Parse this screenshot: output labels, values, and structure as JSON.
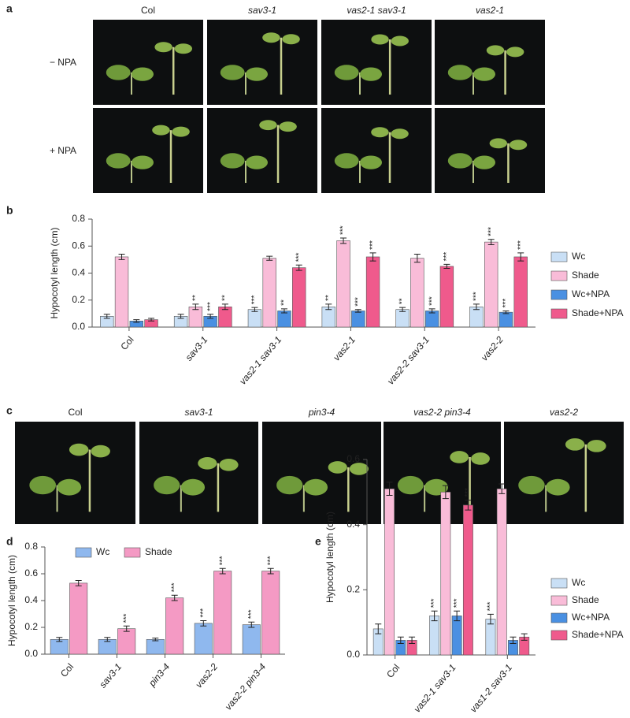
{
  "panel_a": {
    "label": "a",
    "columns": [
      "Col",
      "sav3-1",
      "vas2-1 sav3-1",
      "vas2-1"
    ],
    "rows": [
      "− NPA",
      "+ NPA"
    ]
  },
  "panel_c": {
    "label": "c",
    "columns": [
      "Col",
      "sav3-1",
      "pin3-4",
      "vas2-2 pin3-4",
      "vas2-2"
    ]
  },
  "chart_data": [
    {
      "type": "bar",
      "label": "b",
      "ylabel": "Hypocotyl length (cm)",
      "categories": [
        "Col",
        "sav3-1",
        "vas2-1 sav3-1",
        "vas2-1",
        "vas2-2 sav3-1",
        "vas2-2"
      ],
      "series": [
        {
          "name": "Wc",
          "color": "#c9dff5",
          "values": [
            0.08,
            0.08,
            0.13,
            0.15,
            0.13,
            0.15
          ],
          "errors": [
            0.015,
            0.015,
            0.015,
            0.02,
            0.015,
            0.02
          ],
          "significance": [
            null,
            null,
            "***",
            "**",
            "**",
            "***"
          ]
        },
        {
          "name": "Shade",
          "color": "#f9bcd8",
          "values": [
            0.52,
            0.15,
            0.51,
            0.64,
            0.51,
            0.63
          ],
          "errors": [
            0.02,
            0.02,
            0.015,
            0.02,
            0.03,
            0.02
          ],
          "significance": [
            null,
            "**",
            null,
            "***",
            null,
            "***"
          ]
        },
        {
          "name": "Wc+NPA",
          "color": "#4a90e2",
          "values": [
            0.045,
            0.08,
            0.12,
            0.12,
            0.12,
            0.11
          ],
          "errors": [
            0.01,
            0.015,
            0.015,
            0.01,
            0.015,
            0.01
          ],
          "significance": [
            null,
            "***",
            "**",
            "***",
            "***",
            "***"
          ]
        },
        {
          "name": "Shade+NPA",
          "color": "#ef5a8c",
          "values": [
            0.055,
            0.15,
            0.44,
            0.52,
            0.45,
            0.52
          ],
          "errors": [
            0.01,
            0.02,
            0.02,
            0.03,
            0.015,
            0.03
          ],
          "significance": [
            null,
            "**",
            "***",
            "***",
            "***",
            "***"
          ]
        }
      ],
      "ylim": [
        0,
        0.8
      ],
      "yticks": [
        {
          "value": 0,
          "label": "0.0"
        },
        {
          "value": 0.2,
          "label": "0.2"
        },
        {
          "value": 0.4,
          "label": "0.4"
        },
        {
          "value": 0.6,
          "label": "0.6"
        },
        {
          "value": 0.8,
          "label": "0.8"
        }
      ],
      "legend": "right"
    },
    {
      "type": "bar",
      "label": "d",
      "ylabel": "Hypocotyl length (cm)",
      "categories": [
        "Col",
        "sav3-1",
        "pin3-4",
        "vas2-2",
        "vas2-2 pin3-4"
      ],
      "series": [
        {
          "name": "Wc",
          "color": "#8fb8ee",
          "values": [
            0.11,
            0.11,
            0.11,
            0.23,
            0.22
          ],
          "errors": [
            0.015,
            0.015,
            0.01,
            0.02,
            0.02
          ],
          "significance": [
            null,
            null,
            null,
            "***",
            "***"
          ]
        },
        {
          "name": "Shade",
          "color": "#f49ac4",
          "values": [
            0.53,
            0.19,
            0.42,
            0.62,
            0.62
          ],
          "errors": [
            0.02,
            0.02,
            0.02,
            0.02,
            0.02
          ],
          "significance": [
            null,
            "***",
            "***",
            "***",
            "***"
          ]
        }
      ],
      "ylim": [
        0,
        0.8
      ],
      "yticks": [
        {
          "value": 0,
          "label": "0.0"
        },
        {
          "value": 0.2,
          "label": "0.2"
        },
        {
          "value": 0.4,
          "label": "0.4"
        },
        {
          "value": 0.6,
          "label": "0.6"
        },
        {
          "value": 0.8,
          "label": "0.8"
        }
      ],
      "legend": "top"
    },
    {
      "type": "bar",
      "label": "e",
      "ylabel": "Hypocotyl length (cm)",
      "categories": [
        "Col",
        "vas2-1 sav3-1",
        "vas1-2 sav3-1"
      ],
      "series": [
        {
          "name": "Wc",
          "color": "#c9dff5",
          "values": [
            0.08,
            0.12,
            0.11
          ],
          "errors": [
            0.015,
            0.015,
            0.015
          ],
          "significance": [
            null,
            "***",
            "***"
          ]
        },
        {
          "name": "Shade",
          "color": "#f9bcd8",
          "values": [
            0.51,
            0.5,
            0.51
          ],
          "errors": [
            0.02,
            0.02,
            0.015
          ],
          "significance": [
            null,
            null,
            null
          ]
        },
        {
          "name": "Wc+NPA",
          "color": "#4a90e2",
          "values": [
            0.045,
            0.12,
            0.045
          ],
          "errors": [
            0.01,
            0.015,
            0.01
          ],
          "significance": [
            null,
            "***",
            null
          ]
        },
        {
          "name": "Shade+NPA",
          "color": "#ef5a8c",
          "values": [
            0.045,
            0.46,
            0.055
          ],
          "errors": [
            0.01,
            0.015,
            0.01
          ],
          "significance": [
            null,
            "***",
            null
          ]
        }
      ],
      "ylim": [
        0,
        0.6
      ],
      "yticks": [
        {
          "value": 0,
          "label": "0.0"
        },
        {
          "value": 0.2,
          "label": "0.2"
        },
        {
          "value": 0.4,
          "label": "0.4"
        },
        {
          "value": 0.6,
          "label": "0.6"
        }
      ],
      "legend": "right"
    }
  ]
}
